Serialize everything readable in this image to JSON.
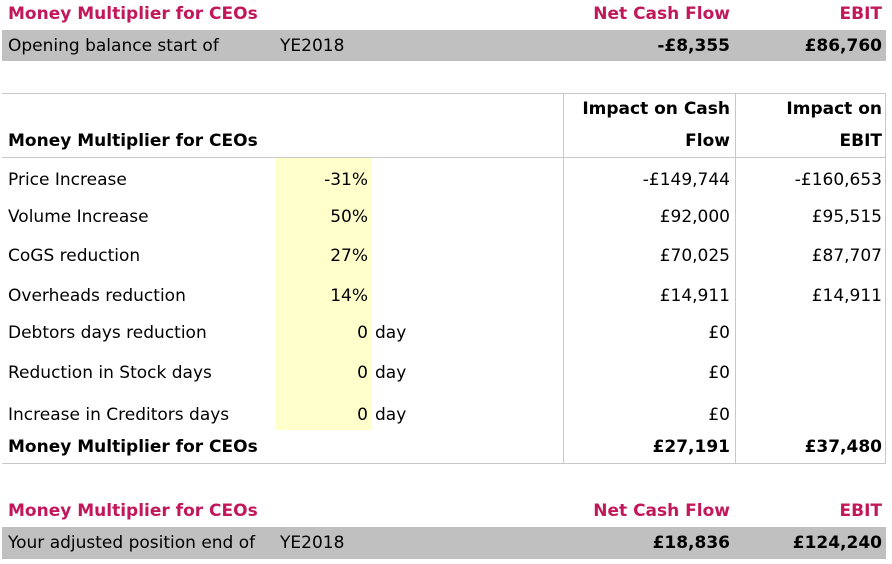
{
  "top": {
    "title": "Money Multiplier for CEOs",
    "col_cash": "Net Cash Flow",
    "col_ebit": "EBIT",
    "row_label": "Opening balance start of",
    "row_year": "YE2018",
    "cash": "-£8,355",
    "ebit": "£86,760"
  },
  "mid": {
    "title": "Money Multiplier for CEOs",
    "col_cash_l1": "Impact on Cash",
    "col_cash_l2": "Flow",
    "col_ebit_l1": "Impact on",
    "col_ebit_l2": "EBIT",
    "rows": [
      {
        "label": "Price Increase",
        "value": "-31%",
        "unit": "",
        "cash": "-£149,744",
        "ebit": "-£160,653"
      },
      {
        "label": "Volume Increase",
        "value": "50%",
        "unit": "",
        "cash": "£92,000",
        "ebit": "£95,515"
      },
      {
        "label": "CoGS reduction",
        "value": "27%",
        "unit": "",
        "cash": "£70,025",
        "ebit": "£87,707"
      },
      {
        "label": "Overheads reduction",
        "value": "14%",
        "unit": "",
        "cash": "£14,911",
        "ebit": "£14,911"
      },
      {
        "label": "Debtors days reduction",
        "value": "0",
        "unit": "day",
        "cash": "£0",
        "ebit": ""
      },
      {
        "label": "Reduction in Stock days",
        "value": "0",
        "unit": "day",
        "cash": "£0",
        "ebit": ""
      },
      {
        "label": "Increase in Creditors days",
        "value": "0",
        "unit": "day",
        "cash": "£0",
        "ebit": ""
      }
    ],
    "total_label": "Money Multiplier for CEOs",
    "total_cash": "£27,191",
    "total_ebit": "£37,480"
  },
  "bottom": {
    "title": "Money Multiplier for CEOs",
    "col_cash": "Net Cash Flow",
    "col_ebit": "EBIT",
    "row_label": "Your adjusted position end of",
    "row_year": "YE2018",
    "cash": "£18,836",
    "ebit": "£124,240"
  },
  "colors": {
    "accent": "#c2185b",
    "band": "#c0c0c0",
    "input": "#ffffcc"
  }
}
